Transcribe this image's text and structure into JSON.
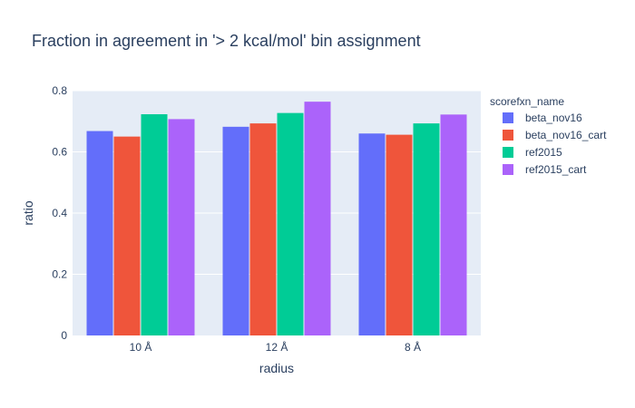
{
  "chart_data": {
    "type": "bar",
    "title": "Fraction in agreement in '> 2 kcal/mol' bin assignment",
    "xlabel": "radius",
    "ylabel": "ratio",
    "categories": [
      "10 Å",
      "12 Å",
      "8 Å"
    ],
    "ylim": [
      0,
      0.8
    ],
    "yticks": [
      0,
      0.2,
      0.4,
      0.6,
      0.8
    ],
    "ytick_labels": [
      "0",
      "0.2",
      "0.4",
      "0.6",
      "0.8"
    ],
    "grid": true,
    "legend": {
      "title": "scorefxn_name",
      "placement": "right"
    },
    "series": [
      {
        "name": "beta_nov16",
        "color": "#636efa",
        "values": [
          0.668,
          0.682,
          0.66
        ]
      },
      {
        "name": "beta_nov16_cart",
        "color": "#ef553b",
        "values": [
          0.65,
          0.693,
          0.656
        ]
      },
      {
        "name": "ref2015",
        "color": "#00cc96",
        "values": [
          0.723,
          0.727,
          0.693
        ]
      },
      {
        "name": "ref2015_cart",
        "color": "#ab63fa",
        "values": [
          0.707,
          0.764,
          0.722
        ]
      }
    ]
  }
}
